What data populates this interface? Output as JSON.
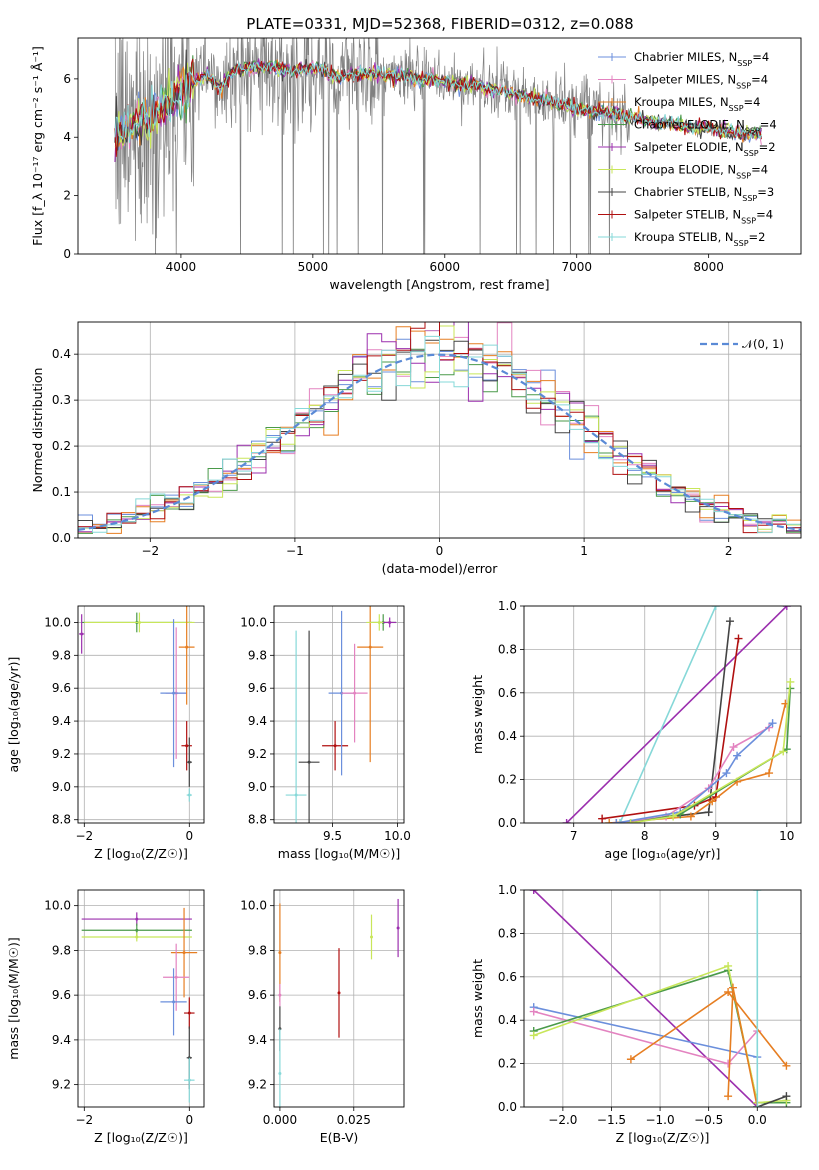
{
  "title": "PLATE=0331, MJD=52368, FIBERID=0312, z=0.088",
  "colors": {
    "Chabrier MILES": "#6b8fdc",
    "Salpeter MILES": "#e383c0",
    "Kroupa MILES": "#e67e22",
    "Chabrier ELODIE": "#4a9a4a",
    "Salpeter ELODIE": "#9b2fae",
    "Kroupa ELODIE": "#c8e65a",
    "Chabrier STELIB": "#444444",
    "Salpeter STELIB": "#b01010",
    "Kroupa STELIB": "#86d8d8",
    "data": "#808080",
    "gaussian": "#5a8ad6"
  },
  "chart_data": [
    {
      "id": "spectrum",
      "type": "line",
      "xlabel": "wavelength [Angstrom, rest frame]",
      "ylabel": "Flux [f_λ 10⁻¹⁷ erg cm⁻² s⁻¹ Å⁻¹]",
      "xlim": [
        3220,
        8700
      ],
      "ylim": [
        0,
        7.4
      ],
      "xticks": [
        "4000",
        "5000",
        "6000",
        "7000",
        "8000"
      ],
      "yticks": [
        "0",
        "2",
        "4",
        "6"
      ],
      "legend": "upper-right",
      "series_names": [
        "Chabrier MILES",
        "Salpeter MILES",
        "Kroupa MILES",
        "Chabrier ELODIE",
        "Salpeter ELODIE",
        "Kroupa ELODIE",
        "Chabrier STELIB",
        "Salpeter STELIB",
        "Kroupa STELIB"
      ],
      "nssp": [
        4,
        4,
        4,
        4,
        2,
        4,
        3,
        4,
        2
      ],
      "model_x": [
        3500,
        3600,
        3700,
        3800,
        3900,
        4000,
        4100,
        4200,
        4300,
        4400,
        4500,
        4600,
        4700,
        4800,
        4900,
        5000,
        5100,
        5200,
        5300,
        5400,
        5500,
        5600,
        5700,
        5800,
        5900,
        6000,
        6100,
        6200,
        6300,
        6400,
        6500,
        6600,
        6700,
        6800,
        6900,
        7000,
        7100,
        7200,
        7300,
        7400,
        7500,
        7600,
        7700,
        7800,
        7900,
        8000,
        8100,
        8200,
        8300,
        8400
      ],
      "model_y": [
        4.0,
        4.3,
        4.6,
        4.9,
        5.1,
        5.6,
        5.9,
        6.1,
        5.7,
        6.3,
        6.4,
        6.4,
        6.4,
        6.3,
        6.3,
        6.4,
        6.3,
        6.0,
        6.2,
        6.2,
        6.2,
        6.1,
        6.1,
        6.0,
        6.0,
        5.9,
        5.8,
        5.8,
        5.7,
        5.6,
        5.5,
        5.4,
        5.3,
        5.2,
        5.1,
        5.0,
        4.9,
        4.9,
        4.8,
        4.7,
        4.6,
        4.5,
        4.5,
        4.4,
        4.3,
        4.3,
        4.2,
        4.2,
        4.1,
        4.1
      ]
    },
    {
      "id": "residuals",
      "type": "line",
      "xlabel": "(data-model)/error",
      "ylabel": "Normed distribution",
      "xlim": [
        -2.5,
        2.5
      ],
      "ylim": [
        0,
        0.47
      ],
      "xticks": [
        "−2",
        "−1",
        "0",
        "1",
        "2"
      ],
      "yticks": [
        "0.0",
        "0.1",
        "0.2",
        "0.3",
        "0.4"
      ],
      "legend": "upper-right",
      "legend_label": "𝒩(0, 1)"
    },
    {
      "id": "age-vs-Z",
      "type": "scatter",
      "xlabel": "Z [log₁₀(Z/Z☉)]",
      "ylabel": "age  [log₁₀(age/yr)]",
      "xlim": [
        -2.12,
        0.28
      ],
      "ylim": [
        8.78,
        10.1
      ],
      "xticks": [
        "−2",
        "0"
      ],
      "yticks": [
        "8.8",
        "9.0",
        "9.2",
        "9.4",
        "9.6",
        "9.8",
        "10.0"
      ],
      "points": [
        {
          "s": "Chabrier ELODIE",
          "x": -1.0,
          "xe": 1.05,
          "y": 10.0,
          "ye": 0.06
        },
        {
          "s": "Kroupa ELODIE",
          "x": -0.95,
          "xe": 1.05,
          "y": 10.0,
          "ye": 0.06
        },
        {
          "s": "Salpeter ELODIE",
          "x": -2.05,
          "xe": 0.05,
          "y": 9.93,
          "ye": 0.12
        },
        {
          "s": "Salpeter MILES",
          "x": -0.25,
          "xe": 0.2,
          "y": 9.57,
          "ye": 0.4
        },
        {
          "s": "Chabrier MILES",
          "x": -0.3,
          "xe": 0.25,
          "y": 9.57,
          "ye": 0.45
        },
        {
          "s": "Kroupa MILES",
          "x": -0.05,
          "xe": 0.15,
          "y": 9.85,
          "ye": 0.35
        },
        {
          "s": "Salpeter STELIB",
          "x": -0.05,
          "xe": 0.1,
          "y": 9.25,
          "ye": 0.15
        },
        {
          "s": "Chabrier STELIB",
          "x": 0.0,
          "xe": 0.05,
          "y": 9.15,
          "ye": 0.15
        },
        {
          "s": "Kroupa STELIB",
          "x": 0.0,
          "xe": 0.05,
          "y": 8.95,
          "ye": 0.04
        }
      ]
    },
    {
      "id": "age-vs-mass",
      "type": "scatter",
      "xlabel": "mass [log₁₀(M/M☉)]",
      "ylabel": "",
      "xlim": [
        9.05,
        10.05
      ],
      "ylim": [
        8.78,
        10.1
      ],
      "xticks": [
        "9.5",
        "10.0"
      ],
      "yticks": [
        "8.8",
        "9.0",
        "9.2",
        "9.4",
        "9.6",
        "9.8",
        "10.0"
      ],
      "points": [
        {
          "s": "Kroupa STELIB",
          "x": 9.22,
          "xe": 0.08,
          "y": 8.95,
          "ye": 1.0
        },
        {
          "s": "Chabrier STELIB",
          "x": 9.32,
          "xe": 0.08,
          "y": 9.15,
          "ye": 0.8
        },
        {
          "s": "Salpeter STELIB",
          "x": 9.52,
          "xe": 0.1,
          "y": 9.25,
          "ye": 0.15
        },
        {
          "s": "Chabrier MILES",
          "x": 9.57,
          "xe": 0.1,
          "y": 9.57,
          "ye": 0.5
        },
        {
          "s": "Salpeter MILES",
          "x": 9.67,
          "xe": 0.1,
          "y": 9.57,
          "ye": 0.3
        },
        {
          "s": "Kroupa MILES",
          "x": 9.79,
          "xe": 0.1,
          "y": 9.85,
          "ye": 0.7
        },
        {
          "s": "Chabrier ELODIE",
          "x": 9.89,
          "xe": 0.1,
          "y": 10.0,
          "ye": 0.05
        },
        {
          "s": "Kroupa ELODIE",
          "x": 9.86,
          "xe": 0.1,
          "y": 10.0,
          "ye": 0.05
        },
        {
          "s": "Salpeter ELODIE",
          "x": 9.94,
          "xe": 0.05,
          "y": 10.0,
          "ye": 0.03
        }
      ]
    },
    {
      "id": "weight-vs-age",
      "type": "line",
      "xlabel": "age  [log₁₀(age/yr)]",
      "ylabel": "mass weight",
      "xlim": [
        6.3,
        10.2
      ],
      "ylim": [
        0,
        1.0
      ],
      "xticks": [
        "7",
        "8",
        "9",
        "10"
      ],
      "yticks": [
        "0.0",
        "0.2",
        "0.4",
        "0.6",
        "0.8",
        "1.0"
      ],
      "series": [
        {
          "s": "Salpeter ELODIE",
          "x": [
            6.9,
            10.0
          ],
          "y": [
            0.0,
            1.0
          ]
        },
        {
          "s": "Kroupa STELIB",
          "x": [
            7.65,
            9.0
          ],
          "y": [
            0.0,
            1.0
          ]
        },
        {
          "s": "Chabrier STELIB",
          "x": [
            7.6,
            8.9,
            9.2
          ],
          "y": [
            0.0,
            0.05,
            0.93
          ]
        },
        {
          "s": "Salpeter STELIB",
          "x": [
            7.4,
            8.7,
            9.0,
            9.32
          ],
          "y": [
            0.02,
            0.08,
            0.12,
            0.85
          ]
        },
        {
          "s": "Kroupa MILES",
          "x": [
            7.5,
            8.65,
            8.95,
            9.3,
            9.75,
            9.98
          ],
          "y": [
            0.0,
            0.03,
            0.1,
            0.19,
            0.23,
            0.55
          ]
        },
        {
          "s": "Salpeter MILES",
          "x": [
            7.6,
            8.3,
            8.9,
            9.25,
            9.75
          ],
          "y": [
            0.0,
            0.03,
            0.16,
            0.35,
            0.44
          ]
        },
        {
          "s": "Chabrier MILES",
          "x": [
            7.6,
            8.5,
            9.15,
            9.3,
            9.8
          ],
          "y": [
            0.0,
            0.05,
            0.23,
            0.31,
            0.46
          ]
        },
        {
          "s": "Chabrier ELODIE",
          "x": [
            7.8,
            8.5,
            10.0,
            10.05
          ],
          "y": [
            0.0,
            0.04,
            0.34,
            0.62
          ]
        },
        {
          "s": "Kroupa ELODIE",
          "x": [
            7.8,
            8.4,
            9.95,
            10.05
          ],
          "y": [
            0.0,
            0.03,
            0.33,
            0.65
          ]
        }
      ]
    },
    {
      "id": "mass-vs-Z",
      "type": "scatter",
      "xlabel": "Z [log₁₀(Z/Z☉)]",
      "ylabel": "mass [log₁₀(M/M☉)]",
      "xlim": [
        -2.12,
        0.28
      ],
      "ylim": [
        9.1,
        10.07
      ],
      "xticks": [
        "−2",
        "0"
      ],
      "yticks": [
        "9.2",
        "9.4",
        "9.6",
        "9.8",
        "10.0"
      ],
      "points": [
        {
          "s": "Salpeter ELODIE",
          "x": -1.0,
          "xe": 1.05,
          "y": 9.94,
          "ye": 0.03
        },
        {
          "s": "Chabrier ELODIE",
          "x": -1.0,
          "xe": 1.05,
          "y": 9.89,
          "ye": 0.03
        },
        {
          "s": "Kroupa ELODIE",
          "x": -1.0,
          "xe": 1.05,
          "y": 9.86,
          "ye": 0.02
        },
        {
          "s": "Kroupa MILES",
          "x": -0.1,
          "xe": 0.25,
          "y": 9.79,
          "ye": 0.2
        },
        {
          "s": "Salpeter MILES",
          "x": -0.25,
          "xe": 0.25,
          "y": 9.68,
          "ye": 0.15
        },
        {
          "s": "Chabrier MILES",
          "x": -0.3,
          "xe": 0.25,
          "y": 9.57,
          "ye": 0.15
        },
        {
          "s": "Salpeter STELIB",
          "x": 0.0,
          "xe": 0.1,
          "y": 9.52,
          "ye": 0.07
        },
        {
          "s": "Chabrier STELIB",
          "x": 0.0,
          "xe": 0.05,
          "y": 9.32,
          "ye": 0.14
        },
        {
          "s": "Kroupa STELIB",
          "x": 0.0,
          "xe": 0.1,
          "y": 9.22,
          "ye": 0.1
        }
      ]
    },
    {
      "id": "mass-vs-EBV",
      "type": "scatter",
      "xlabel": "E(B-V)",
      "ylabel": "",
      "xlim": [
        -0.002,
        0.042
      ],
      "ylim": [
        9.1,
        10.07
      ],
      "xticks": [
        "0.000",
        "0.025"
      ],
      "yticks": [
        "9.2",
        "9.4",
        "9.6",
        "9.8",
        "10.0"
      ],
      "points": [
        {
          "s": "Kroupa MILES",
          "x": 0.0,
          "xe": 0,
          "y": 9.79,
          "ye": 0.22
        },
        {
          "s": "Salpeter MILES",
          "x": 0.0,
          "xe": 0,
          "y": 9.6,
          "ye": 0.05
        },
        {
          "s": "Chabrier STELIB",
          "x": 0.0,
          "xe": 0,
          "y": 9.45,
          "ye": 0.1
        },
        {
          "s": "Kroupa STELIB",
          "x": 0.0,
          "xe": 0,
          "y": 9.25,
          "ye": 0.2
        },
        {
          "s": "Salpeter STELIB",
          "x": 0.02,
          "xe": 0,
          "y": 9.61,
          "ye": 0.2
        },
        {
          "s": "Kroupa ELODIE",
          "x": 0.031,
          "xe": 0,
          "y": 9.86,
          "ye": 0.1
        },
        {
          "s": "Salpeter ELODIE",
          "x": 0.04,
          "xe": 0,
          "y": 9.9,
          "ye": 0.13
        }
      ]
    },
    {
      "id": "weight-vs-Z",
      "type": "line",
      "xlabel": "Z [log₁₀(Z/Z☉)]",
      "ylabel": "mass weight",
      "xlim": [
        -2.4,
        0.45
      ],
      "ylim": [
        0,
        1.0
      ],
      "xticks": [
        "−2.0",
        "−1.5",
        "−1.0",
        "−0.5",
        "0.0"
      ],
      "yticks": [
        "0.0",
        "0.2",
        "0.4",
        "0.6",
        "0.8",
        "1.0"
      ],
      "series": [
        {
          "s": "Salpeter ELODIE",
          "x": [
            -2.3,
            0.0
          ],
          "y": [
            1.0,
            0.0
          ]
        },
        {
          "s": "Chabrier MILES",
          "x": [
            -2.3,
            0.0
          ],
          "y": [
            0.46,
            0.23
          ]
        },
        {
          "s": "Salpeter MILES",
          "x": [
            -2.3,
            -0.3,
            0.0
          ],
          "y": [
            0.44,
            0.2,
            0.35
          ]
        },
        {
          "s": "Chabrier ELODIE",
          "x": [
            -2.3,
            -0.3,
            0.0,
            0.3
          ],
          "y": [
            0.35,
            0.63,
            0.02,
            0.02
          ]
        },
        {
          "s": "Kroupa ELODIE",
          "x": [
            -2.3,
            -0.3,
            0.0,
            0.3
          ],
          "y": [
            0.33,
            0.65,
            0.02,
            0.03
          ]
        },
        {
          "s": "Kroupa MILES",
          "x": [
            -1.3,
            -0.3,
            0.3
          ],
          "y": [
            0.22,
            0.53,
            0.19
          ]
        },
        {
          "s": "Kroupa MILES",
          "x": [
            -0.3,
            -0.25,
            0.0
          ],
          "y": [
            0.05,
            0.55,
            0.0
          ]
        },
        {
          "s": "Chabrier STELIB",
          "x": [
            0.0,
            0.3
          ],
          "y": [
            0.0,
            0.05
          ]
        },
        {
          "s": "Kroupa STELIB",
          "x": [
            0.0,
            0.0
          ],
          "y": [
            0.0,
            1.0
          ]
        }
      ]
    }
  ]
}
